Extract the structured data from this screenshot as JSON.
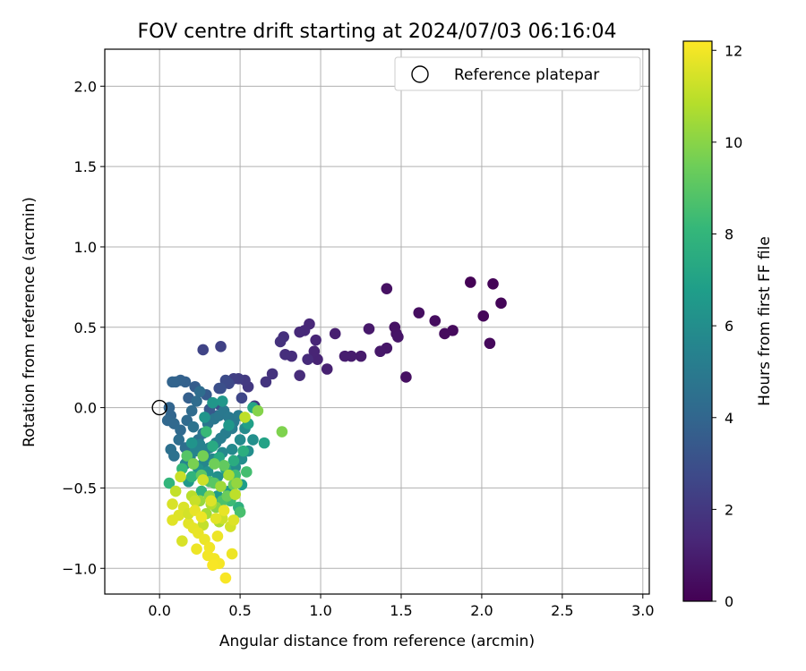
{
  "chart_data": {
    "type": "scatter",
    "title": "FOV centre drift starting at 2024/07/03 06:16:04",
    "xlabel": "Angular distance from reference (arcmin)",
    "ylabel": "Rotation from reference (arcmin)",
    "xlim": [
      -0.34,
      3.04
    ],
    "ylim": [
      -1.16,
      2.23
    ],
    "xticks": [
      "0.0",
      "0.5",
      "1.0",
      "1.5",
      "2.0",
      "2.5",
      "3.0"
    ],
    "yticks": [
      "−1.0",
      "−0.5",
      "0.0",
      "0.5",
      "1.0",
      "1.5",
      "2.0"
    ],
    "grid": true,
    "legend": {
      "placement": "top-right",
      "entries": [
        "Reference platepar"
      ]
    },
    "reference_point": {
      "x": 0.0,
      "y": 0.0
    },
    "colorbar": {
      "label": "Hours from first FF file",
      "range": [
        0,
        12.2
      ],
      "ticks": [
        "0",
        "2",
        "4",
        "6",
        "8",
        "10",
        "12"
      ],
      "colormap": "viridis",
      "colors": [
        "#440154",
        "#482878",
        "#3e4989",
        "#31688e",
        "#26828e",
        "#1f9e89",
        "#35b779",
        "#6ece58",
        "#b5de2b",
        "#fde725"
      ]
    },
    "series": [
      {
        "points": [
          [
            1.93,
            0.78,
            0.05
          ],
          [
            2.07,
            0.77,
            0.1
          ],
          [
            2.12,
            0.65,
            0.15
          ],
          [
            2.01,
            0.57,
            0.2
          ],
          [
            2.05,
            0.4,
            0.25
          ],
          [
            1.82,
            0.48,
            0.3
          ],
          [
            1.77,
            0.46,
            0.35
          ],
          [
            1.71,
            0.54,
            0.4
          ],
          [
            1.61,
            0.59,
            0.45
          ],
          [
            1.53,
            0.19,
            0.5
          ],
          [
            1.41,
            0.74,
            0.55
          ],
          [
            1.46,
            0.5,
            0.6
          ],
          [
            1.47,
            0.46,
            0.65
          ],
          [
            1.48,
            0.44,
            0.7
          ],
          [
            1.41,
            0.37,
            0.75
          ],
          [
            1.37,
            0.35,
            0.8
          ],
          [
            1.3,
            0.49,
            0.85
          ],
          [
            1.25,
            0.32,
            0.9
          ],
          [
            1.19,
            0.32,
            0.95
          ],
          [
            1.15,
            0.32,
            1.0
          ],
          [
            1.09,
            0.46,
            1.05
          ],
          [
            1.04,
            0.24,
            1.1
          ],
          [
            0.98,
            0.3,
            1.2
          ],
          [
            0.96,
            0.35,
            1.25
          ],
          [
            0.97,
            0.42,
            1.3
          ],
          [
            0.93,
            0.52,
            1.35
          ],
          [
            0.9,
            0.48,
            1.4
          ],
          [
            0.87,
            0.47,
            1.45
          ],
          [
            0.92,
            0.3,
            1.5
          ],
          [
            0.87,
            0.2,
            1.55
          ],
          [
            0.82,
            0.32,
            1.6
          ],
          [
            0.78,
            0.33,
            1.65
          ],
          [
            0.77,
            0.44,
            1.7
          ],
          [
            0.75,
            0.41,
            1.75
          ],
          [
            0.7,
            0.21,
            1.8
          ],
          [
            0.66,
            0.16,
            1.85
          ],
          [
            0.59,
            0.01,
            1.9
          ],
          [
            0.55,
            0.13,
            2.0
          ],
          [
            0.53,
            0.17,
            2.1
          ],
          [
            0.49,
            0.18,
            2.2
          ],
          [
            0.46,
            0.18,
            2.3
          ],
          [
            0.38,
            0.38,
            2.4
          ],
          [
            0.27,
            0.36,
            2.5
          ],
          [
            0.51,
            0.06,
            2.6
          ],
          [
            0.43,
            0.15,
            2.7
          ],
          [
            0.41,
            0.17,
            2.8
          ],
          [
            0.37,
            0.12,
            2.9
          ],
          [
            0.38,
            0.12,
            3.0
          ],
          [
            0.37,
            0.02,
            3.1
          ],
          [
            0.36,
            -0.05,
            3.2
          ],
          [
            0.33,
            -0.07,
            3.3
          ],
          [
            0.31,
            -0.01,
            3.4
          ],
          [
            0.29,
            0.08,
            3.5
          ],
          [
            0.22,
            0.13,
            3.6
          ],
          [
            0.18,
            0.06,
            3.7
          ],
          [
            0.16,
            0.16,
            3.75
          ],
          [
            0.13,
            0.17,
            3.8
          ],
          [
            0.1,
            0.16,
            3.85
          ],
          [
            0.08,
            0.16,
            3.9
          ],
          [
            0.06,
            0.0,
            3.95
          ],
          [
            0.07,
            -0.05,
            4.0
          ],
          [
            0.05,
            -0.08,
            4.05
          ],
          [
            0.09,
            -0.1,
            4.1
          ],
          [
            0.13,
            -0.14,
            4.15
          ],
          [
            0.17,
            -0.08,
            4.2
          ],
          [
            0.2,
            -0.02,
            4.25
          ],
          [
            0.23,
            0.04,
            4.3
          ],
          [
            0.25,
            0.1,
            4.35
          ],
          [
            0.12,
            -0.2,
            4.4
          ],
          [
            0.16,
            -0.25,
            4.45
          ],
          [
            0.07,
            -0.26,
            4.5
          ],
          [
            0.09,
            -0.3,
            4.55
          ],
          [
            0.21,
            -0.12,
            4.6
          ],
          [
            0.24,
            -0.2,
            4.65
          ],
          [
            0.27,
            -0.16,
            4.7
          ],
          [
            0.3,
            -0.1,
            4.75
          ],
          [
            0.34,
            -0.07,
            4.8
          ],
          [
            0.37,
            -0.05,
            4.85
          ],
          [
            0.4,
            -0.02,
            4.9
          ],
          [
            0.43,
            -0.06,
            4.95
          ],
          [
            0.46,
            -0.09,
            5.0
          ],
          [
            0.49,
            -0.05,
            5.05
          ],
          [
            0.45,
            -0.13,
            5.1
          ],
          [
            0.41,
            -0.16,
            5.15
          ],
          [
            0.38,
            -0.19,
            5.2
          ],
          [
            0.35,
            -0.22,
            5.25
          ],
          [
            0.31,
            -0.25,
            5.3
          ],
          [
            0.28,
            -0.28,
            5.35
          ],
          [
            0.25,
            -0.23,
            5.4
          ],
          [
            0.22,
            -0.27,
            5.45
          ],
          [
            0.19,
            -0.31,
            5.5
          ],
          [
            0.16,
            -0.35,
            5.55
          ],
          [
            0.27,
            -0.35,
            5.6
          ],
          [
            0.33,
            -0.32,
            5.65
          ],
          [
            0.39,
            -0.28,
            5.7
          ],
          [
            0.45,
            -0.26,
            5.75
          ],
          [
            0.5,
            -0.2,
            5.8
          ],
          [
            0.53,
            -0.13,
            5.85
          ],
          [
            0.47,
            -0.37,
            5.9
          ],
          [
            0.51,
            -0.32,
            5.95
          ],
          [
            0.55,
            -0.27,
            6.0
          ],
          [
            0.58,
            -0.2,
            6.05
          ],
          [
            0.42,
            -0.41,
            6.1
          ],
          [
            0.36,
            -0.43,
            6.15
          ],
          [
            0.3,
            -0.4,
            6.2
          ],
          [
            0.24,
            -0.38,
            6.25
          ],
          [
            0.2,
            -0.22,
            6.3
          ],
          [
            0.28,
            -0.06,
            6.35
          ],
          [
            0.33,
            0.03,
            6.4
          ],
          [
            0.39,
            0.04,
            6.45
          ],
          [
            0.43,
            -0.11,
            6.5
          ],
          [
            0.18,
            -0.46,
            6.55
          ],
          [
            0.36,
            -0.55,
            6.6
          ],
          [
            0.43,
            -0.52,
            6.7
          ],
          [
            0.51,
            -0.48,
            6.8
          ],
          [
            0.55,
            -0.1,
            6.9
          ],
          [
            0.65,
            -0.22,
            7.0
          ],
          [
            0.58,
            0.0,
            7.1
          ],
          [
            0.41,
            -0.38,
            7.2
          ],
          [
            0.37,
            -0.31,
            7.3
          ],
          [
            0.33,
            -0.24,
            7.4
          ],
          [
            0.46,
            -0.33,
            7.5
          ],
          [
            0.52,
            -0.27,
            7.6
          ],
          [
            0.49,
            -0.62,
            7.7
          ],
          [
            0.26,
            -0.52,
            7.8
          ],
          [
            0.2,
            -0.43,
            7.9
          ],
          [
            0.06,
            -0.47,
            8.0
          ],
          [
            0.14,
            -0.38,
            8.1
          ],
          [
            0.29,
            -0.15,
            8.2
          ],
          [
            0.44,
            -0.58,
            8.3
          ],
          [
            0.47,
            -0.42,
            8.4
          ],
          [
            0.54,
            -0.4,
            8.5
          ],
          [
            0.5,
            -0.65,
            8.6
          ],
          [
            0.39,
            -0.58,
            8.7
          ],
          [
            0.31,
            -0.46,
            8.8
          ],
          [
            0.17,
            -0.3,
            8.9
          ],
          [
            0.34,
            -0.47,
            9.0
          ],
          [
            0.26,
            -0.42,
            9.1
          ],
          [
            0.4,
            -0.36,
            9.2
          ],
          [
            0.46,
            -0.48,
            9.3
          ],
          [
            0.42,
            -0.55,
            9.4
          ],
          [
            0.34,
            -0.35,
            9.5
          ],
          [
            0.27,
            -0.3,
            9.6
          ],
          [
            0.21,
            -0.35,
            9.7
          ],
          [
            0.76,
            -0.15,
            9.8
          ],
          [
            0.61,
            -0.02,
            9.9
          ],
          [
            0.35,
            -0.62,
            10.0
          ],
          [
            0.31,
            -0.55,
            10.1
          ],
          [
            0.48,
            -0.47,
            10.2
          ],
          [
            0.25,
            -0.58,
            10.3
          ],
          [
            0.38,
            -0.49,
            10.4
          ],
          [
            0.29,
            -0.66,
            10.5
          ],
          [
            0.43,
            -0.42,
            10.6
          ],
          [
            0.37,
            -0.71,
            10.7
          ],
          [
            0.32,
            -0.6,
            10.8
          ],
          [
            0.2,
            -0.55,
            10.9
          ],
          [
            0.47,
            -0.54,
            11.0
          ],
          [
            0.53,
            -0.06,
            11.0
          ],
          [
            0.27,
            -0.73,
            11.1
          ],
          [
            0.22,
            -0.58,
            11.2
          ],
          [
            0.39,
            -0.69,
            11.3
          ],
          [
            0.44,
            -0.74,
            11.4
          ],
          [
            0.08,
            -0.6,
            11.5
          ],
          [
            0.15,
            -0.62,
            11.55
          ],
          [
            0.12,
            -0.67,
            11.6
          ],
          [
            0.08,
            -0.7,
            11.65
          ],
          [
            0.18,
            -0.72,
            11.7
          ],
          [
            0.21,
            -0.75,
            11.75
          ],
          [
            0.24,
            -0.78,
            11.8
          ],
          [
            0.28,
            -0.82,
            11.85
          ],
          [
            0.23,
            -0.88,
            11.9
          ],
          [
            0.31,
            -0.87,
            11.95
          ],
          [
            0.34,
            -0.94,
            12.0
          ],
          [
            0.37,
            -0.97,
            12.05
          ],
          [
            0.33,
            -0.98,
            12.1
          ],
          [
            0.3,
            -0.92,
            12.0
          ],
          [
            0.36,
            -0.8,
            11.9
          ],
          [
            0.4,
            -0.64,
            11.8
          ],
          [
            0.45,
            -0.91,
            11.9
          ],
          [
            0.41,
            -1.06,
            12.1
          ],
          [
            0.46,
            -0.7,
            11.6
          ],
          [
            0.35,
            -0.69,
            11.7
          ],
          [
            0.18,
            -0.66,
            11.4
          ],
          [
            0.13,
            -0.43,
            11.2
          ],
          [
            0.27,
            -0.45,
            11.3
          ],
          [
            0.1,
            -0.52,
            11.1
          ],
          [
            0.14,
            -0.83,
            11.5
          ],
          [
            0.22,
            -0.64,
            11.8
          ],
          [
            0.32,
            -0.58,
            11.6
          ],
          [
            0.26,
            -0.68,
            11.9
          ]
        ]
      }
    ]
  }
}
